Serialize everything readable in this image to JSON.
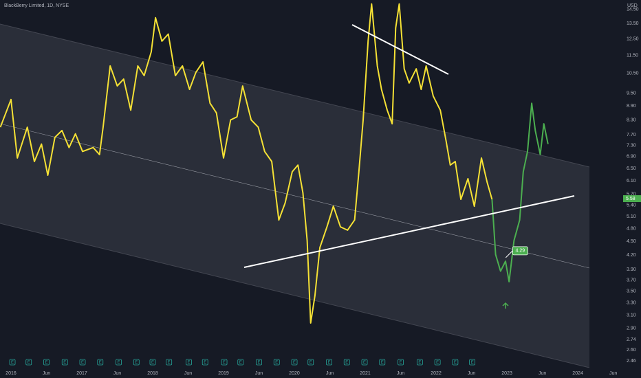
{
  "chart_data": {
    "type": "line",
    "title": "BlackBerry Limited, 1D, NYSE",
    "currency": "USD",
    "log_scale": true,
    "grid": false,
    "last_price_label": "5.58",
    "last_price": 5.58,
    "annotation": {
      "label": "4.29",
      "value": 4.29,
      "x": 2023.08
    },
    "xlim": [
      2015.845,
      2024.63
    ],
    "ylim": [
      2.42,
      15.2
    ],
    "xticks": [
      {
        "value": 2016,
        "label": "2016"
      },
      {
        "value": 2016.5,
        "label": "Jun"
      },
      {
        "value": 2017,
        "label": "2017"
      },
      {
        "value": 2017.5,
        "label": "Jun"
      },
      {
        "value": 2018,
        "label": "2018"
      },
      {
        "value": 2018.5,
        "label": "Jun"
      },
      {
        "value": 2019,
        "label": "2019"
      },
      {
        "value": 2019.5,
        "label": "Jun"
      },
      {
        "value": 2020,
        "label": "2020"
      },
      {
        "value": 2020.5,
        "label": "Jun"
      },
      {
        "value": 2021,
        "label": "2021"
      },
      {
        "value": 2021.5,
        "label": "Jun"
      },
      {
        "value": 2022,
        "label": "2022"
      },
      {
        "value": 2022.5,
        "label": "Jun"
      },
      {
        "value": 2023,
        "label": "2023"
      },
      {
        "value": 2023.5,
        "label": "Jun"
      },
      {
        "value": 2024,
        "label": "2024"
      },
      {
        "value": 2024.5,
        "label": "Jun"
      }
    ],
    "yticks": [
      {
        "value": 14.5,
        "label": "14.50"
      },
      {
        "value": 13.5,
        "label": "13.50"
      },
      {
        "value": 12.5,
        "label": "12.50"
      },
      {
        "value": 11.5,
        "label": "11.50"
      },
      {
        "value": 10.5,
        "label": "10.50"
      },
      {
        "value": 9.5,
        "label": "9.50"
      },
      {
        "value": 8.9,
        "label": "8.90"
      },
      {
        "value": 8.3,
        "label": "8.30"
      },
      {
        "value": 7.7,
        "label": "7.70"
      },
      {
        "value": 7.3,
        "label": "7.30"
      },
      {
        "value": 6.9,
        "label": "6.90"
      },
      {
        "value": 6.5,
        "label": "6.50"
      },
      {
        "value": 6.1,
        "label": "6.10"
      },
      {
        "value": 5.7,
        "label": "5.70"
      },
      {
        "value": 5.4,
        "label": "5.40"
      },
      {
        "value": 5.1,
        "label": "5.10"
      },
      {
        "value": 4.8,
        "label": "4.80"
      },
      {
        "value": 4.5,
        "label": "4.50"
      },
      {
        "value": 4.2,
        "label": "4.20"
      },
      {
        "value": 3.9,
        "label": "3.90"
      },
      {
        "value": 3.7,
        "label": "3.70"
      },
      {
        "value": 3.5,
        "label": "3.50"
      },
      {
        "value": 3.3,
        "label": "3.30"
      },
      {
        "value": 3.1,
        "label": "3.10"
      },
      {
        "value": 2.9,
        "label": "2.90"
      },
      {
        "value": 2.74,
        "label": "2.74"
      },
      {
        "value": 2.6,
        "label": "2.60"
      },
      {
        "value": 2.46,
        "label": "2.46"
      }
    ],
    "events": {
      "label": "E",
      "x": [
        2016.02,
        2016.25,
        2016.5,
        2016.76,
        2017.01,
        2017.26,
        2017.52,
        2017.77,
        2018.0,
        2018.23,
        2018.51,
        2018.74,
        2019.01,
        2019.24,
        2019.5,
        2019.75,
        2020.0,
        2020.23,
        2020.49,
        2020.74,
        2020.99,
        2021.24,
        2021.5,
        2021.77,
        2022.02,
        2022.27,
        2022.51
      ]
    },
    "series": [
      {
        "color": "#f5e135",
        "x": [
          2015.85,
          2016.0,
          2016.09,
          2016.23,
          2016.33,
          2016.43,
          2016.52,
          2016.62,
          2016.72,
          2016.82,
          2016.91,
          2017.01,
          2017.16,
          2017.25,
          2017.3,
          2017.4,
          2017.5,
          2017.59,
          2017.69,
          2017.79,
          2017.88,
          2017.98,
          2018.04,
          2018.13,
          2018.22,
          2018.32,
          2018.42,
          2018.52,
          2018.61,
          2018.71,
          2018.81,
          2018.9,
          2019.0,
          2019.1,
          2019.19,
          2019.27,
          2019.39,
          2019.49,
          2019.58,
          2019.68,
          2019.78,
          2019.87,
          2019.97,
          2020.05,
          2020.12,
          2020.18,
          2020.23,
          2020.29,
          2020.36,
          2020.46,
          2020.55,
          2020.65,
          2020.75,
          2020.85,
          2020.91,
          2020.97,
          2021.04,
          2021.09,
          2021.17,
          2021.23,
          2021.31,
          2021.38,
          2021.43,
          2021.48,
          2021.55,
          2021.62,
          2021.72,
          2021.79,
          2021.86,
          2021.96,
          2022.06,
          2022.14,
          2022.2,
          2022.27,
          2022.35,
          2022.45,
          2022.54,
          2022.64,
          2022.72,
          2022.79
        ],
        "values": [
          8.0,
          9.2,
          6.85,
          8.0,
          6.73,
          7.35,
          6.28,
          7.6,
          7.87,
          7.22,
          7.74,
          7.08,
          7.22,
          6.97,
          8.0,
          10.9,
          9.85,
          10.2,
          8.72,
          10.9,
          10.38,
          11.7,
          13.9,
          12.35,
          12.8,
          10.38,
          10.9,
          9.68,
          10.55,
          11.12,
          9.03,
          8.6,
          6.85,
          8.3,
          8.43,
          9.85,
          8.3,
          8.0,
          7.08,
          6.73,
          5.01,
          5.46,
          6.39,
          6.61,
          5.75,
          4.52,
          2.98,
          3.42,
          4.36,
          4.84,
          5.37,
          4.84,
          4.76,
          5.01,
          6.39,
          8.3,
          12.35,
          14.9,
          10.9,
          9.68,
          8.72,
          8.14,
          13.2,
          14.9,
          10.74,
          10.0,
          10.74,
          9.68,
          10.9,
          9.36,
          8.72,
          7.48,
          6.61,
          6.73,
          5.56,
          6.17,
          5.37,
          6.85,
          6.07,
          5.56
        ]
      },
      {
        "color": "#4caf50",
        "x": [
          2022.79,
          2022.84,
          2022.91,
          2022.98,
          2023.03,
          2023.1,
          2023.18,
          2023.23,
          2023.29,
          2023.35,
          2023.4,
          2023.47,
          2023.52,
          2023.58
        ],
        "values": [
          5.56,
          4.21,
          3.87,
          4.07,
          3.67,
          4.52,
          5.01,
          6.39,
          7.08,
          9.03,
          7.87,
          6.97,
          8.14,
          7.35
        ]
      }
    ]
  }
}
